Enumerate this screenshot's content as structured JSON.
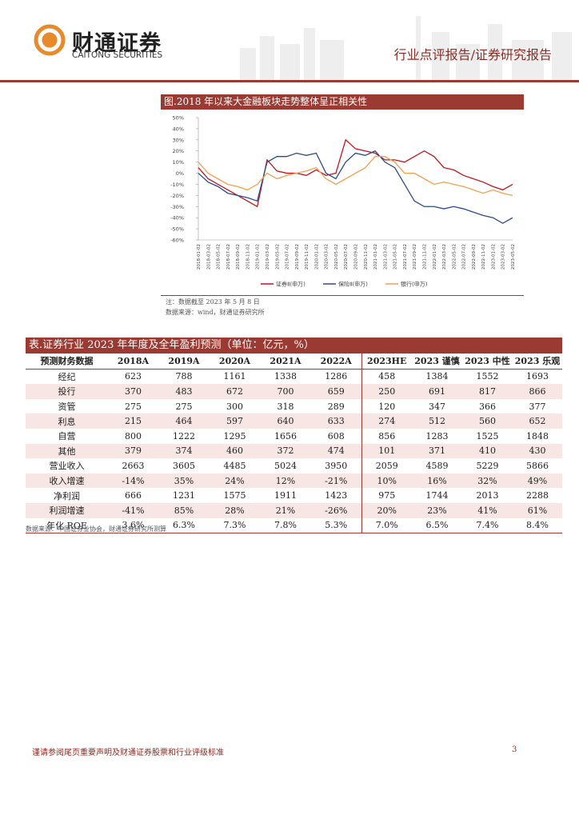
{
  "header": {
    "logo_cn": "财通证券",
    "logo_en": "CAITONG SECURITIES",
    "report_type": "行业点评报告/证券研究报告"
  },
  "chart_data": {
    "type": "line",
    "title": "图.2018 年以来大金融板块走势整体呈正相关性",
    "categories": [
      "2018-01-02",
      "2018-03-02",
      "2018-05-02",
      "2018-07-02",
      "2018-09-02",
      "2018-11-02",
      "2019-01-02",
      "2019-03-02",
      "2019-05-02",
      "2019-07-02",
      "2019-09-02",
      "2019-11-02",
      "2020-01-02",
      "2020-03-02",
      "2020-05-02",
      "2020-07-02",
      "2020-09-02",
      "2020-11-02",
      "2021-01-02",
      "2021-03-02",
      "2021-05-02",
      "2021-07-02",
      "2021-09-02",
      "2021-11-02",
      "2022-01-02",
      "2022-03-02",
      "2022-05-02",
      "2022-07-02",
      "2022-09-02",
      "2022-11-02",
      "2023-01-02",
      "2023-03-02",
      "2023-05-02"
    ],
    "series": [
      {
        "name": "证券Ⅱ(申万)",
        "color": "#c0141c",
        "values": [
          5,
          -5,
          -10,
          -15,
          -20,
          -25,
          -30,
          12,
          2,
          0,
          0,
          -2,
          3,
          -2,
          0,
          30,
          22,
          20,
          18,
          12,
          12,
          10,
          15,
          20,
          15,
          5,
          3,
          -2,
          -5,
          -8,
          -12,
          -15,
          -10
        ]
      },
      {
        "name": "保险Ⅱ(申万)",
        "color": "#2a4a8c",
        "values": [
          0,
          -8,
          -12,
          -18,
          -20,
          -22,
          -25,
          10,
          15,
          15,
          18,
          16,
          18,
          0,
          -5,
          10,
          18,
          16,
          20,
          10,
          5,
          -10,
          -25,
          -30,
          -30,
          -32,
          -30,
          -32,
          -35,
          -38,
          -40,
          -45,
          -40
        ]
      },
      {
        "name": "银行(申万)",
        "color": "#f0a050",
        "values": [
          10,
          0,
          -5,
          -10,
          -12,
          -15,
          -10,
          0,
          -5,
          -2,
          0,
          2,
          5,
          -5,
          -10,
          -5,
          0,
          5,
          15,
          15,
          10,
          0,
          0,
          -5,
          -10,
          -8,
          -10,
          -12,
          -15,
          -18,
          -15,
          -18,
          -20
        ]
      }
    ],
    "ylim": [
      -60,
      50
    ],
    "yticks": [
      {
        "value": 50,
        "label": "50%"
      },
      {
        "value": 40,
        "label": "40%"
      },
      {
        "value": 30,
        "label": "30%"
      },
      {
        "value": 20,
        "label": "20%"
      },
      {
        "value": 10,
        "label": "10%"
      },
      {
        "value": 0,
        "label": "0%"
      },
      {
        "value": -10,
        "label": "-10%"
      },
      {
        "value": -20,
        "label": "-20%"
      },
      {
        "value": -30,
        "label": "-30%"
      },
      {
        "value": -40,
        "label": "-40%"
      },
      {
        "value": -50,
        "label": "-50%"
      },
      {
        "value": -60,
        "label": "-60%"
      }
    ],
    "grid": false,
    "legend": "bottom"
  },
  "figure": {
    "note": "注：数据截至 2023 年 5 月 8 日",
    "source": "数据来源：wind，财通证券研究所"
  },
  "table": {
    "title": "表.证券行业 2023 年年度及全年盈利预测（单位：亿元，%）",
    "columns": [
      "预测财务数据",
      "2018A",
      "2019A",
      "2020A",
      "2021A",
      "2022A",
      "2023HE",
      "2023 谨慎",
      "2023 中性",
      "2023 乐观"
    ],
    "rows": [
      [
        "经纪",
        623,
        788,
        1161,
        1338,
        1286,
        458,
        1384,
        1552,
        1693
      ],
      [
        "投行",
        370,
        483,
        672,
        700,
        659,
        250,
        691,
        817,
        866
      ],
      [
        "资管",
        275,
        275,
        300,
        318,
        289,
        120,
        347,
        366,
        377
      ],
      [
        "利息",
        215,
        464,
        597,
        640,
        633,
        274,
        512,
        560,
        652
      ],
      [
        "自营",
        800,
        1222,
        1295,
        1656,
        608,
        856,
        1283,
        1525,
        1848
      ],
      [
        "其他",
        379,
        374,
        460,
        372,
        474,
        101,
        371,
        410,
        430
      ],
      [
        "营业收入",
        2663,
        3605,
        4485,
        5024,
        3950,
        2059,
        4589,
        5229,
        5866
      ],
      [
        "收入增速",
        "-14%",
        "35%",
        "24%",
        "12%",
        "-21%",
        "10%",
        "16%",
        "32%",
        "49%"
      ],
      [
        "净利润",
        666,
        1231,
        1575,
        1911,
        1423,
        975,
        1744,
        2013,
        2288
      ],
      [
        "利润增速",
        "-41%",
        "85%",
        "28%",
        "21%",
        "-26%",
        "20%",
        "23%",
        "41%",
        "61%"
      ],
      [
        "年化 ROE",
        "3.6%",
        "6.3%",
        "7.3%",
        "7.8%",
        "5.3%",
        "7.0%",
        "6.5%",
        "7.4%",
        "8.4%"
      ]
    ],
    "source": "数据来源：中国证券业协会，财通证券研究所测算"
  },
  "footer": {
    "disclaimer": "谨请参阅尾页重要声明及财通证券股票和行业评级标准",
    "page": 3
  }
}
